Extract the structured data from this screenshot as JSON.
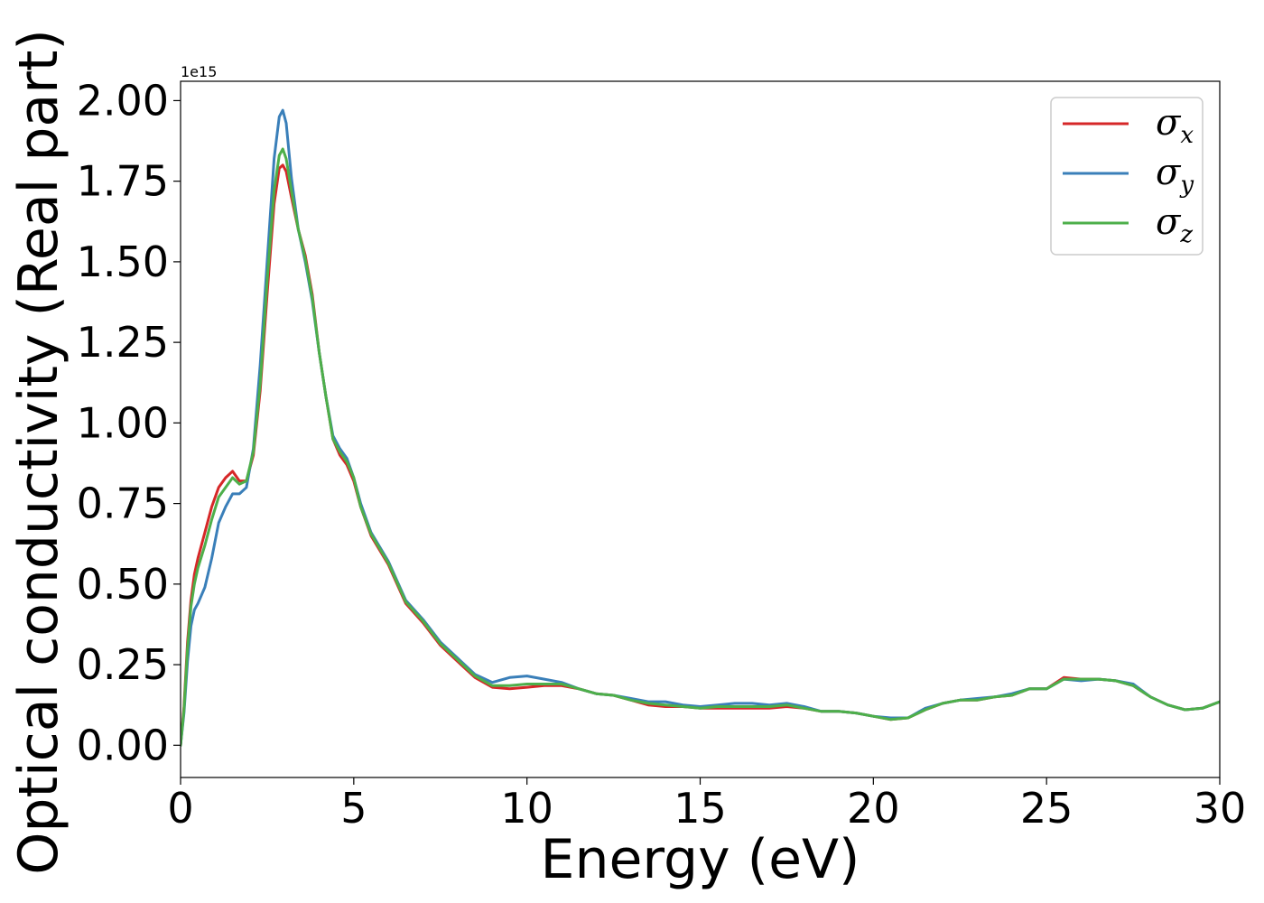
{
  "chart_data": {
    "type": "line",
    "xlabel": "Energy (eV)",
    "ylabel": "Optical conductivity (Real part)",
    "y_offset_label": "1e15",
    "xlim": [
      0,
      30
    ],
    "ylim": [
      -0.1,
      2.06
    ],
    "x_ticks": [
      0,
      5,
      10,
      15,
      20,
      25,
      30
    ],
    "x_tick_labels": [
      "0",
      "5",
      "10",
      "15",
      "20",
      "25",
      "30"
    ],
    "y_ticks": [
      0,
      0.25,
      0.5,
      0.75,
      1.0,
      1.25,
      1.5,
      1.75,
      2.0
    ],
    "y_tick_labels": [
      "0.00",
      "0.25",
      "0.50",
      "0.75",
      "1.00",
      "1.25",
      "1.50",
      "1.75",
      "2.00"
    ],
    "grid": false,
    "legend_position": "top-right",
    "series": [
      {
        "name": "σx",
        "legend_base": "σ",
        "legend_sub": "x",
        "color": "#d62728",
        "points": [
          [
            0,
            0
          ],
          [
            0.1,
            0.12
          ],
          [
            0.2,
            0.32
          ],
          [
            0.3,
            0.45
          ],
          [
            0.4,
            0.53
          ],
          [
            0.5,
            0.58
          ],
          [
            0.7,
            0.66
          ],
          [
            0.9,
            0.74
          ],
          [
            1.1,
            0.8
          ],
          [
            1.3,
            0.83
          ],
          [
            1.5,
            0.85
          ],
          [
            1.7,
            0.82
          ],
          [
            1.9,
            0.82
          ],
          [
            2.1,
            0.9
          ],
          [
            2.3,
            1.1
          ],
          [
            2.5,
            1.4
          ],
          [
            2.7,
            1.68
          ],
          [
            2.85,
            1.79
          ],
          [
            2.95,
            1.8
          ],
          [
            3.05,
            1.78
          ],
          [
            3.2,
            1.7
          ],
          [
            3.4,
            1.6
          ],
          [
            3.6,
            1.52
          ],
          [
            3.8,
            1.4
          ],
          [
            4.0,
            1.22
          ],
          [
            4.2,
            1.08
          ],
          [
            4.4,
            0.95
          ],
          [
            4.6,
            0.9
          ],
          [
            4.8,
            0.87
          ],
          [
            5.0,
            0.82
          ],
          [
            5.2,
            0.74
          ],
          [
            5.5,
            0.65
          ],
          [
            6.0,
            0.56
          ],
          [
            6.5,
            0.44
          ],
          [
            7.0,
            0.38
          ],
          [
            7.5,
            0.31
          ],
          [
            8.0,
            0.26
          ],
          [
            8.5,
            0.21
          ],
          [
            9.0,
            0.18
          ],
          [
            9.5,
            0.175
          ],
          [
            10.0,
            0.18
          ],
          [
            10.5,
            0.185
          ],
          [
            11.0,
            0.185
          ],
          [
            11.5,
            0.175
          ],
          [
            12.0,
            0.16
          ],
          [
            12.5,
            0.155
          ],
          [
            13.0,
            0.14
          ],
          [
            13.5,
            0.125
          ],
          [
            14.0,
            0.12
          ],
          [
            14.5,
            0.12
          ],
          [
            15.0,
            0.115
          ],
          [
            15.5,
            0.115
          ],
          [
            16.0,
            0.115
          ],
          [
            16.5,
            0.115
          ],
          [
            17.0,
            0.115
          ],
          [
            17.5,
            0.12
          ],
          [
            18.0,
            0.115
          ],
          [
            18.5,
            0.105
          ],
          [
            19.0,
            0.105
          ],
          [
            19.5,
            0.1
          ],
          [
            20.0,
            0.09
          ],
          [
            20.5,
            0.08
          ],
          [
            21.0,
            0.085
          ],
          [
            21.5,
            0.11
          ],
          [
            22.0,
            0.13
          ],
          [
            22.5,
            0.14
          ],
          [
            23.0,
            0.14
          ],
          [
            23.5,
            0.15
          ],
          [
            24.0,
            0.155
          ],
          [
            24.5,
            0.175
          ],
          [
            25.0,
            0.175
          ],
          [
            25.5,
            0.21
          ],
          [
            26.0,
            0.205
          ],
          [
            26.5,
            0.205
          ],
          [
            27.0,
            0.2
          ],
          [
            27.5,
            0.185
          ],
          [
            28.0,
            0.15
          ],
          [
            28.5,
            0.125
          ],
          [
            29.0,
            0.11
          ],
          [
            29.5,
            0.115
          ],
          [
            30.0,
            0.135
          ]
        ]
      },
      {
        "name": "σy",
        "legend_base": "σ",
        "legend_sub": "y",
        "color": "#3a7fb9",
        "points": [
          [
            0,
            0
          ],
          [
            0.1,
            0.1
          ],
          [
            0.2,
            0.26
          ],
          [
            0.3,
            0.37
          ],
          [
            0.4,
            0.42
          ],
          [
            0.5,
            0.44
          ],
          [
            0.7,
            0.49
          ],
          [
            0.9,
            0.58
          ],
          [
            1.1,
            0.69
          ],
          [
            1.3,
            0.74
          ],
          [
            1.5,
            0.78
          ],
          [
            1.7,
            0.78
          ],
          [
            1.9,
            0.8
          ],
          [
            2.1,
            0.92
          ],
          [
            2.3,
            1.18
          ],
          [
            2.5,
            1.5
          ],
          [
            2.7,
            1.82
          ],
          [
            2.85,
            1.95
          ],
          [
            2.95,
            1.97
          ],
          [
            3.05,
            1.93
          ],
          [
            3.2,
            1.76
          ],
          [
            3.4,
            1.6
          ],
          [
            3.6,
            1.5
          ],
          [
            3.8,
            1.38
          ],
          [
            4.0,
            1.22
          ],
          [
            4.2,
            1.08
          ],
          [
            4.4,
            0.96
          ],
          [
            4.6,
            0.92
          ],
          [
            4.8,
            0.89
          ],
          [
            5.0,
            0.83
          ],
          [
            5.2,
            0.75
          ],
          [
            5.5,
            0.66
          ],
          [
            6.0,
            0.57
          ],
          [
            6.5,
            0.45
          ],
          [
            7.0,
            0.39
          ],
          [
            7.5,
            0.32
          ],
          [
            8.0,
            0.27
          ],
          [
            8.5,
            0.22
          ],
          [
            9.0,
            0.195
          ],
          [
            9.5,
            0.21
          ],
          [
            10.0,
            0.215
          ],
          [
            10.5,
            0.205
          ],
          [
            11.0,
            0.195
          ],
          [
            11.5,
            0.175
          ],
          [
            12.0,
            0.16
          ],
          [
            12.5,
            0.155
          ],
          [
            13.0,
            0.145
          ],
          [
            13.5,
            0.135
          ],
          [
            14.0,
            0.135
          ],
          [
            14.5,
            0.125
          ],
          [
            15.0,
            0.12
          ],
          [
            15.5,
            0.125
          ],
          [
            16.0,
            0.13
          ],
          [
            16.5,
            0.13
          ],
          [
            17.0,
            0.125
          ],
          [
            17.5,
            0.13
          ],
          [
            18.0,
            0.12
          ],
          [
            18.5,
            0.105
          ],
          [
            19.0,
            0.105
          ],
          [
            19.5,
            0.1
          ],
          [
            20.0,
            0.09
          ],
          [
            20.5,
            0.085
          ],
          [
            21.0,
            0.085
          ],
          [
            21.5,
            0.115
          ],
          [
            22.0,
            0.13
          ],
          [
            22.5,
            0.14
          ],
          [
            23.0,
            0.145
          ],
          [
            23.5,
            0.15
          ],
          [
            24.0,
            0.16
          ],
          [
            24.5,
            0.175
          ],
          [
            25.0,
            0.175
          ],
          [
            25.5,
            0.205
          ],
          [
            26.0,
            0.2
          ],
          [
            26.5,
            0.205
          ],
          [
            27.0,
            0.2
          ],
          [
            27.5,
            0.19
          ],
          [
            28.0,
            0.15
          ],
          [
            28.5,
            0.125
          ],
          [
            29.0,
            0.11
          ],
          [
            29.5,
            0.115
          ],
          [
            30.0,
            0.135
          ]
        ]
      },
      {
        "name": "σz",
        "legend_base": "σ",
        "legend_sub": "z",
        "color": "#4daf4a",
        "points": [
          [
            0,
            0
          ],
          [
            0.1,
            0.11
          ],
          [
            0.2,
            0.3
          ],
          [
            0.3,
            0.43
          ],
          [
            0.4,
            0.5
          ],
          [
            0.5,
            0.55
          ],
          [
            0.7,
            0.62
          ],
          [
            0.9,
            0.7
          ],
          [
            1.1,
            0.77
          ],
          [
            1.3,
            0.8
          ],
          [
            1.5,
            0.83
          ],
          [
            1.7,
            0.81
          ],
          [
            1.9,
            0.82
          ],
          [
            2.1,
            0.91
          ],
          [
            2.3,
            1.12
          ],
          [
            2.5,
            1.44
          ],
          [
            2.7,
            1.72
          ],
          [
            2.85,
            1.83
          ],
          [
            2.95,
            1.85
          ],
          [
            3.05,
            1.82
          ],
          [
            3.2,
            1.72
          ],
          [
            3.4,
            1.6
          ],
          [
            3.6,
            1.51
          ],
          [
            3.8,
            1.39
          ],
          [
            4.0,
            1.22
          ],
          [
            4.2,
            1.08
          ],
          [
            4.4,
            0.95
          ],
          [
            4.6,
            0.91
          ],
          [
            4.8,
            0.88
          ],
          [
            5.0,
            0.83
          ],
          [
            5.2,
            0.74
          ],
          [
            5.5,
            0.655
          ],
          [
            6.0,
            0.565
          ],
          [
            6.5,
            0.445
          ],
          [
            7.0,
            0.385
          ],
          [
            7.5,
            0.315
          ],
          [
            8.0,
            0.265
          ],
          [
            8.5,
            0.215
          ],
          [
            9.0,
            0.185
          ],
          [
            9.5,
            0.185
          ],
          [
            10.0,
            0.19
          ],
          [
            10.5,
            0.19
          ],
          [
            11.0,
            0.19
          ],
          [
            11.5,
            0.175
          ],
          [
            12.0,
            0.16
          ],
          [
            12.5,
            0.155
          ],
          [
            13.0,
            0.14
          ],
          [
            13.5,
            0.13
          ],
          [
            14.0,
            0.125
          ],
          [
            14.5,
            0.12
          ],
          [
            15.0,
            0.115
          ],
          [
            15.5,
            0.12
          ],
          [
            16.0,
            0.12
          ],
          [
            16.5,
            0.12
          ],
          [
            17.0,
            0.12
          ],
          [
            17.5,
            0.125
          ],
          [
            18.0,
            0.115
          ],
          [
            18.5,
            0.105
          ],
          [
            19.0,
            0.105
          ],
          [
            19.5,
            0.1
          ],
          [
            20.0,
            0.09
          ],
          [
            20.5,
            0.08
          ],
          [
            21.0,
            0.085
          ],
          [
            21.5,
            0.11
          ],
          [
            22.0,
            0.13
          ],
          [
            22.5,
            0.14
          ],
          [
            23.0,
            0.14
          ],
          [
            23.5,
            0.15
          ],
          [
            24.0,
            0.155
          ],
          [
            24.5,
            0.175
          ],
          [
            25.0,
            0.175
          ],
          [
            25.5,
            0.205
          ],
          [
            26.0,
            0.205
          ],
          [
            26.5,
            0.205
          ],
          [
            27.0,
            0.2
          ],
          [
            27.5,
            0.185
          ],
          [
            28.0,
            0.15
          ],
          [
            28.5,
            0.125
          ],
          [
            29.0,
            0.11
          ],
          [
            29.5,
            0.115
          ],
          [
            30.0,
            0.135
          ]
        ]
      }
    ]
  }
}
